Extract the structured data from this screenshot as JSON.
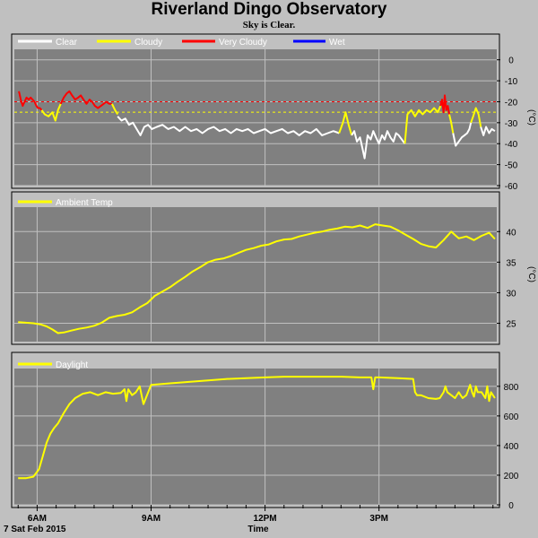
{
  "title": "Riverland Dingo Observatory",
  "subtitle": "Sky is Clear.",
  "footer": {
    "date": "7 Sat Feb 2015",
    "xlabel": "Time"
  },
  "colors": {
    "panel": "#808080",
    "frame": "#000000",
    "grid": "#c0c0c0",
    "clear": "#ffffff",
    "cloudy": "#ffff00",
    "very_cloudy": "#ff0000",
    "wet": "#0000ff"
  },
  "chart_data": [
    {
      "type": "line",
      "name": "sky",
      "legend": [
        {
          "label": "Clear",
          "color": "#ffffff"
        },
        {
          "label": "Cloudy",
          "color": "#ffff00"
        },
        {
          "label": "Very Cloudy",
          "color": "#ff0000"
        },
        {
          "label": "Wet",
          "color": "#0000ff"
        }
      ],
      "ylabel": "(°C)",
      "ylim": [
        -60,
        5
      ],
      "yticks": [
        0,
        -10,
        -20,
        -30,
        -40,
        -50,
        -60
      ],
      "thresholds": [
        {
          "value": -20,
          "color": "#ff0000"
        },
        {
          "value": -25,
          "color": "#ffff00"
        }
      ],
      "series": [
        {
          "state": "very_cloudy",
          "color": "#ff0000",
          "x": [
            5.52,
            5.57,
            5.62,
            5.67,
            5.72,
            5.78,
            5.83,
            5.88,
            5.93,
            5.98,
            6.02,
            6.07,
            6.12
          ],
          "y": [
            -15,
            -19,
            -22,
            -20,
            -18,
            -19,
            -18,
            -19,
            -20,
            -22,
            -23,
            -23,
            -24
          ]
        },
        {
          "state": "cloudy",
          "color": "#ffff00",
          "x": [
            6.12,
            6.2,
            6.3,
            6.4,
            6.48,
            6.55,
            6.62
          ],
          "y": [
            -24,
            -26,
            -27,
            -25,
            -29,
            -24,
            -21
          ]
        },
        {
          "state": "very_cloudy",
          "color": "#ff0000",
          "x": [
            6.62,
            6.7,
            6.78,
            6.85,
            6.92,
            7.0,
            7.08,
            7.15,
            7.22,
            7.3,
            7.38,
            7.45,
            7.52,
            7.6,
            7.68,
            7.75,
            7.82,
            7.9,
            7.97
          ],
          "y": [
            -21,
            -18,
            -16,
            -15,
            -17,
            -19,
            -18,
            -17,
            -19,
            -21,
            -19,
            -20,
            -22,
            -23,
            -22,
            -21,
            -20,
            -21,
            -21
          ]
        },
        {
          "state": "cloudy",
          "color": "#ffff00",
          "x": [
            7.97,
            8.05,
            8.12
          ],
          "y": [
            -21,
            -24,
            -26
          ]
        },
        {
          "state": "clear",
          "color": "#ffffff",
          "x": [
            8.12,
            8.22,
            8.32,
            8.42,
            8.52,
            8.62,
            8.72,
            8.82,
            8.92,
            9.02,
            9.15,
            9.3,
            9.45,
            9.6,
            9.75,
            9.9,
            10.05,
            10.2,
            10.35,
            10.5,
            10.65,
            10.8,
            10.95,
            11.1,
            11.25,
            11.4,
            11.55,
            11.7,
            11.85,
            12.0,
            12.15,
            12.3,
            12.45,
            12.6,
            12.75,
            12.9,
            13.05,
            13.2,
            13.35,
            13.5,
            13.65,
            13.8,
            13.95
          ],
          "y": [
            -27,
            -29,
            -28,
            -31,
            -30,
            -33,
            -36,
            -32,
            -31,
            -33,
            -32,
            -31,
            -33,
            -32,
            -34,
            -32,
            -34,
            -33,
            -35,
            -33,
            -32,
            -34,
            -33,
            -35,
            -33,
            -34,
            -33,
            -35,
            -34,
            -33,
            -35,
            -34,
            -33,
            -35,
            -34,
            -36,
            -34,
            -35,
            -33,
            -36,
            -35,
            -34,
            -35
          ]
        },
        {
          "state": "cloudy",
          "color": "#ffff00",
          "x": [
            13.95,
            14.05,
            14.12,
            14.2,
            14.28
          ],
          "y": [
            -35,
            -30,
            -25,
            -31,
            -36
          ]
        },
        {
          "state": "clear",
          "color": "#ffffff",
          "x": [
            14.28,
            14.35,
            14.42,
            14.5,
            14.55,
            14.62,
            14.7,
            14.78,
            14.85,
            14.92,
            15.0,
            15.08,
            15.15,
            15.22,
            15.3,
            15.38,
            15.45,
            15.52,
            15.6,
            15.68
          ],
          "y": [
            -36,
            -34,
            -39,
            -37,
            -41,
            -47,
            -36,
            -38,
            -34,
            -37,
            -40,
            -36,
            -38,
            -34,
            -37,
            -39,
            -35,
            -36,
            -38,
            -40
          ]
        },
        {
          "state": "cloudy",
          "color": "#ffff00",
          "x": [
            15.68,
            15.75,
            15.85,
            15.95,
            16.05,
            16.15,
            16.25,
            16.35,
            16.45,
            16.55,
            16.62
          ],
          "y": [
            -40,
            -26,
            -24,
            -27,
            -24,
            -26,
            -24,
            -25,
            -23,
            -25,
            -22
          ]
        },
        {
          "state": "very_cloudy",
          "color": "#ff0000",
          "x": [
            16.62,
            16.66,
            16.7,
            16.73,
            16.77,
            16.81,
            16.85
          ],
          "y": [
            -22,
            -19,
            -25,
            -17,
            -24,
            -22,
            -26
          ]
        },
        {
          "state": "cloudy",
          "color": "#ffff00",
          "x": [
            16.85,
            16.9,
            16.95
          ],
          "y": [
            -26,
            -30,
            -35
          ]
        },
        {
          "state": "clear",
          "color": "#ffffff",
          "x": [
            16.95,
            17.02,
            17.1,
            17.18,
            17.25,
            17.32,
            17.38,
            17.42
          ],
          "y": [
            -35,
            -41,
            -39,
            -37,
            -36,
            -35,
            -33,
            -30
          ]
        },
        {
          "state": "cloudy",
          "color": "#ffff00",
          "x": [
            17.42,
            17.48,
            17.55,
            17.62,
            17.68
          ],
          "y": [
            -30,
            -27,
            -23,
            -26,
            -32
          ]
        },
        {
          "state": "clear",
          "color": "#ffffff",
          "x": [
            17.68,
            17.75,
            17.82,
            17.9,
            17.97,
            18.05
          ],
          "y": [
            -32,
            -36,
            -32,
            -35,
            -33,
            -34
          ]
        }
      ]
    },
    {
      "type": "line",
      "name": "ambient",
      "legend": [
        {
          "label": "Ambient Temp",
          "color": "#ffff00"
        }
      ],
      "ylabel": "(°C)",
      "ylim": [
        22,
        44
      ],
      "yticks": [
        25,
        30,
        35,
        40
      ],
      "series": [
        {
          "color": "#ffff00",
          "x": [
            5.5,
            5.7,
            5.9,
            6.1,
            6.25,
            6.4,
            6.55,
            6.7,
            6.9,
            7.1,
            7.3,
            7.5,
            7.7,
            7.9,
            8.1,
            8.3,
            8.5,
            8.7,
            8.9,
            9.1,
            9.3,
            9.5,
            9.7,
            9.9,
            10.1,
            10.3,
            10.5,
            10.7,
            10.9,
            11.1,
            11.3,
            11.5,
            11.7,
            11.9,
            12.1,
            12.3,
            12.5,
            12.7,
            12.9,
            13.1,
            13.3,
            13.5,
            13.7,
            13.9,
            14.1,
            14.3,
            14.5,
            14.7,
            14.9,
            15.1,
            15.3,
            15.5,
            15.7,
            15.9,
            16.1,
            16.3,
            16.5,
            16.7,
            16.9,
            17.1,
            17.3,
            17.5,
            17.7,
            17.9,
            18.05
          ],
          "y": [
            25.2,
            25.1,
            25.0,
            24.8,
            24.5,
            24.0,
            23.4,
            23.5,
            23.8,
            24.1,
            24.3,
            24.6,
            25.1,
            25.9,
            26.2,
            26.4,
            26.8,
            27.6,
            28.3,
            29.5,
            30.2,
            30.9,
            31.8,
            32.6,
            33.5,
            34.2,
            35.0,
            35.4,
            35.6,
            36.0,
            36.5,
            37.0,
            37.3,
            37.7,
            37.9,
            38.4,
            38.7,
            38.8,
            39.2,
            39.5,
            39.8,
            40.0,
            40.3,
            40.5,
            40.8,
            40.7,
            41.0,
            40.6,
            41.2,
            41.0,
            40.8,
            40.2,
            39.5,
            38.8,
            38.0,
            37.6,
            37.4,
            38.6,
            40.0,
            38.9,
            39.2,
            38.6,
            39.3,
            39.8,
            38.8
          ]
        }
      ]
    },
    {
      "type": "line",
      "name": "daylight",
      "legend": [
        {
          "label": "Daylight",
          "color": "#ffff00"
        }
      ],
      "ylim": [
        0,
        920
      ],
      "yticks": [
        0,
        200,
        400,
        600,
        800
      ],
      "series": [
        {
          "color": "#ffff00",
          "x": [
            5.5,
            5.7,
            5.9,
            6.05,
            6.15,
            6.25,
            6.35,
            6.45,
            6.55,
            6.7,
            6.85,
            7.0,
            7.2,
            7.4,
            7.6,
            7.8,
            8.0,
            8.2,
            8.3,
            8.35,
            8.4,
            8.45,
            8.5,
            8.6,
            8.7,
            8.8,
            9.0,
            9.5,
            10.0,
            10.5,
            11.0,
            11.5,
            12.0,
            12.5,
            13.0,
            13.5,
            14.0,
            14.5,
            14.8,
            14.85,
            14.9,
            15.0,
            15.5,
            15.9,
            15.95,
            16.0,
            16.1,
            16.3,
            16.5,
            16.6,
            16.7,
            16.75,
            16.8,
            16.9,
            17.0,
            17.1,
            17.2,
            17.3,
            17.4,
            17.45,
            17.5,
            17.55,
            17.6,
            17.7,
            17.8,
            17.85,
            17.9,
            17.95,
            18.05
          ],
          "y": [
            180,
            180,
            190,
            240,
            330,
            420,
            480,
            520,
            550,
            620,
            680,
            720,
            750,
            760,
            740,
            760,
            750,
            755,
            780,
            700,
            780,
            760,
            740,
            760,
            800,
            680,
            810,
            820,
            830,
            840,
            850,
            855,
            860,
            865,
            865,
            865,
            865,
            860,
            860,
            780,
            860,
            860,
            855,
            850,
            760,
            740,
            740,
            720,
            715,
            720,
            760,
            800,
            760,
            740,
            720,
            760,
            720,
            740,
            810,
            760,
            730,
            800,
            760,
            760,
            720,
            800,
            700,
            760,
            720
          ]
        }
      ]
    }
  ],
  "xaxis": {
    "xlim": [
      5.4,
      18.1
    ],
    "major": [
      {
        "value": 6,
        "label": "6AM"
      },
      {
        "value": 9,
        "label": "9AM"
      },
      {
        "value": 12,
        "label": "12PM"
      },
      {
        "value": 15,
        "label": "3PM"
      }
    ],
    "minor_step": 0.5
  }
}
